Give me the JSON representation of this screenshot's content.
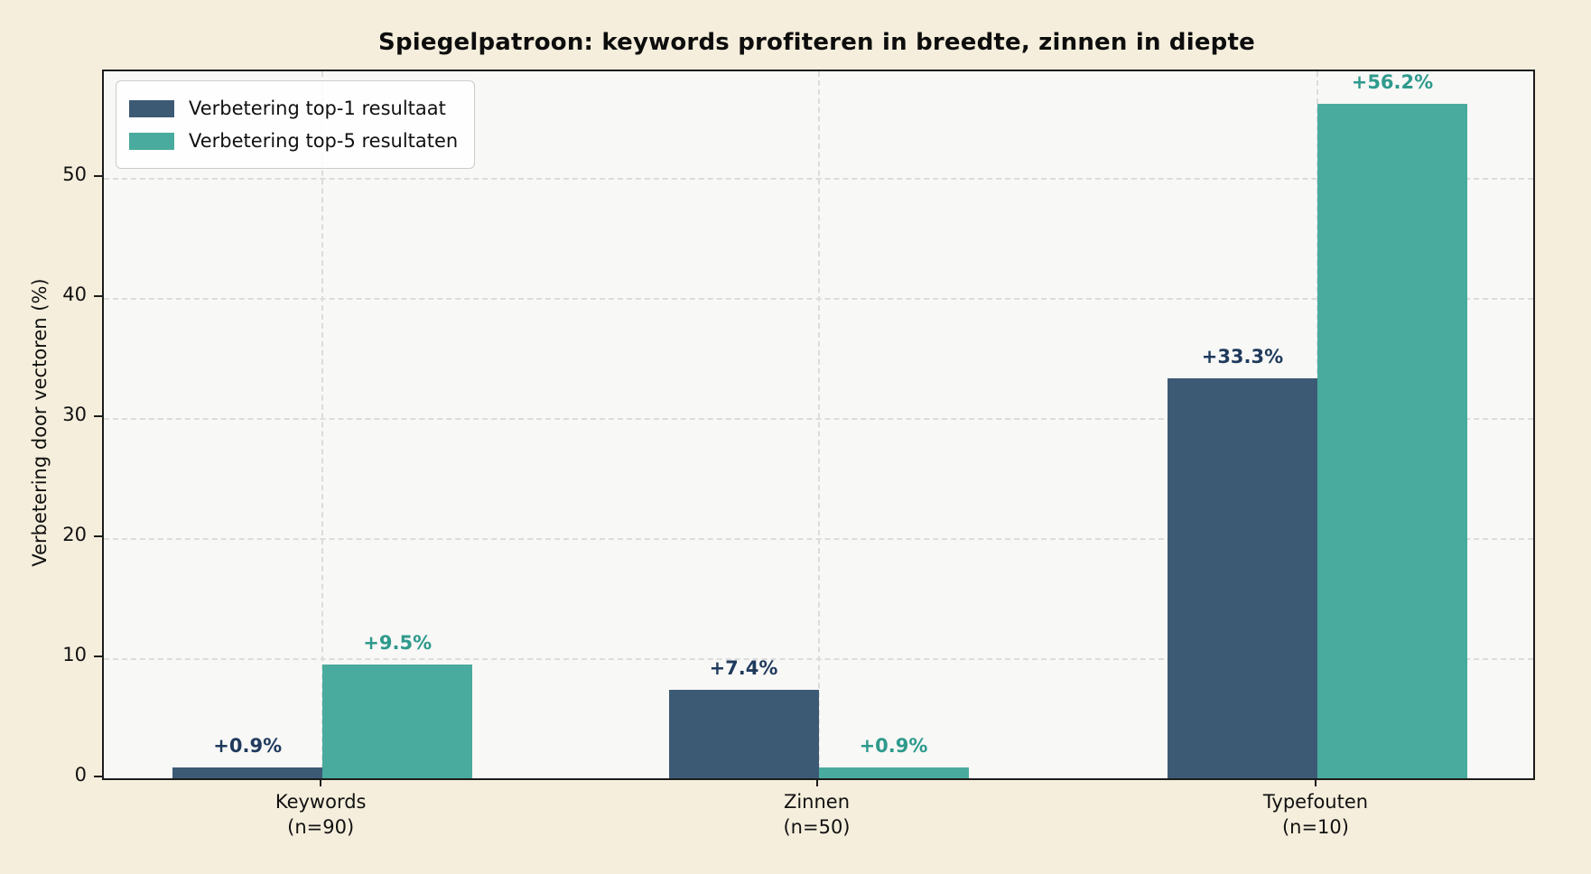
{
  "chart_data": {
    "type": "bar",
    "title": "Spiegelpatroon: keywords profiteren in breedte, zinnen in diepte",
    "ylabel": "Verbetering door vectoren (%)",
    "xlabel": "",
    "categories": [
      {
        "label": "Keywords",
        "sublabel": "(n=90)"
      },
      {
        "label": "Zinnen",
        "sublabel": "(n=50)"
      },
      {
        "label": "Typefouten",
        "sublabel": "(n=10)"
      }
    ],
    "series": [
      {
        "name": "Verbetering top-1 resultaat",
        "color": "#3d5a75",
        "label_color": "#1f3a5c",
        "values": [
          0.9,
          7.4,
          33.3
        ],
        "value_labels": [
          "+0.9%",
          "+7.4%",
          "+33.3%"
        ]
      },
      {
        "name": "Verbetering top-5 resultaten",
        "color": "#49ab9e",
        "label_color": "#2e9a8c",
        "values": [
          9.5,
          0.9,
          56.2
        ],
        "value_labels": [
          "+9.5%",
          "+0.9%",
          "+56.2%"
        ]
      }
    ],
    "yticks": [
      0,
      10,
      20,
      30,
      40,
      50
    ],
    "ylim": [
      0,
      58.9
    ],
    "grid": true,
    "legend_position": "upper left",
    "colors": {
      "figure_background": "#f5eedc",
      "plot_background": "#f8f8f7",
      "gridline": "#dcdcdc",
      "spine": "#1c1c1c"
    }
  }
}
